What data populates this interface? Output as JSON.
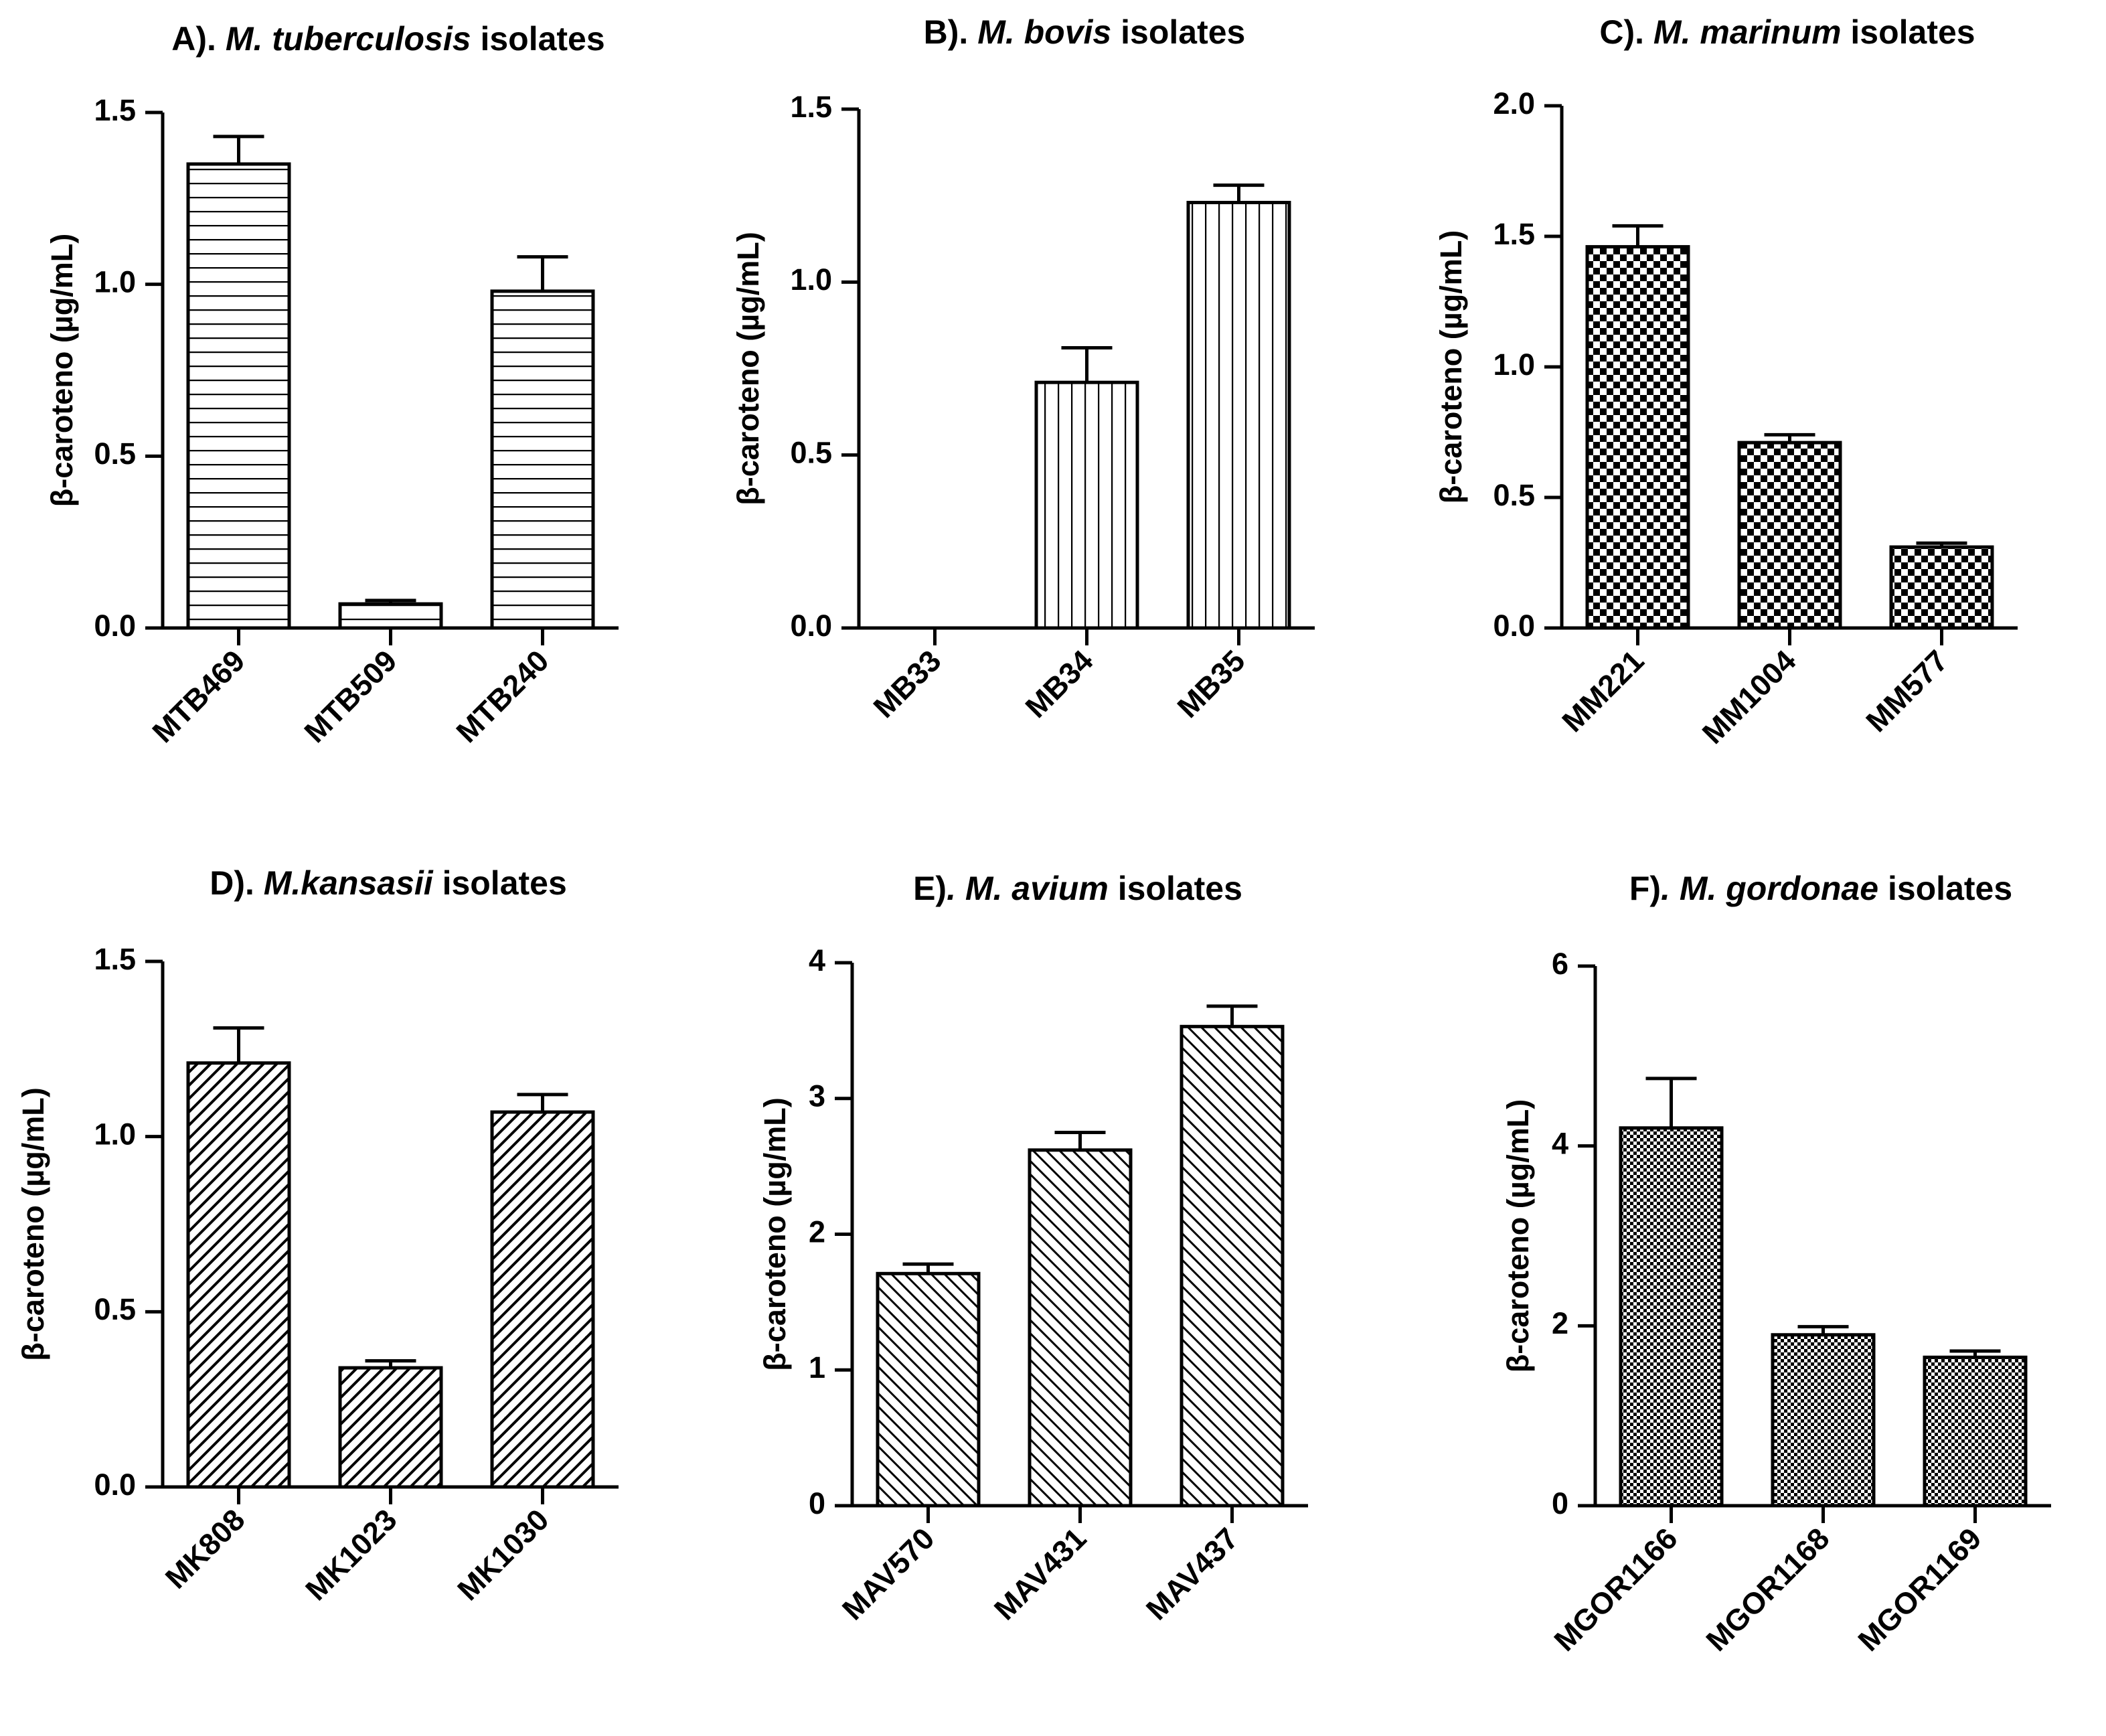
{
  "chart_data": [
    {
      "type": "bar",
      "title": {
        "prefix": "A). ",
        "italic": "M. tuberculosis",
        "suffix": " isolates"
      },
      "ylabel": "β-caroteno (µg/mL)",
      "ylim": [
        0,
        1.5
      ],
      "yticks": [
        "0.0",
        "0.5",
        "1.0",
        "1.5"
      ],
      "categories": [
        "MTB469",
        "MTB509",
        "MTB240"
      ],
      "values": [
        1.35,
        0.07,
        0.98
      ],
      "errors": [
        0.08,
        0.01,
        0.1
      ],
      "pattern": "hlines"
    },
    {
      "type": "bar",
      "title": {
        "prefix": "B). ",
        "italic": "M. bovis",
        "suffix": " isolates"
      },
      "ylabel": "β-caroteno (µg/mL)",
      "ylim": [
        0,
        1.5
      ],
      "yticks": [
        "0.0",
        "0.5",
        "1.0",
        "1.5"
      ],
      "categories": [
        "MB33",
        "MB34",
        "MB35"
      ],
      "values": [
        0,
        0.71,
        1.23
      ],
      "errors": [
        0,
        0.1,
        0.05
      ],
      "pattern": "vlines"
    },
    {
      "type": "bar",
      "title": {
        "prefix": "C). ",
        "italic": "M. marinum",
        "suffix": " isolates"
      },
      "ylabel": "β-caroteno (µg/mL)",
      "ylim": [
        0,
        2.0
      ],
      "yticks": [
        "0.0",
        "0.5",
        "1.0",
        "1.5",
        "2.0"
      ],
      "categories": [
        "MM221",
        "MM1004",
        "MM577"
      ],
      "values": [
        1.46,
        0.71,
        0.31
      ],
      "errors": [
        0.08,
        0.03,
        0.015
      ],
      "pattern": "checker"
    },
    {
      "type": "bar",
      "title": {
        "prefix": "D). ",
        "italic": "M.kansasii",
        "suffix": " isolates"
      },
      "ylabel": "β-caroteno (µg/mL)",
      "ylim": [
        0,
        1.5
      ],
      "yticks": [
        "0.0",
        "0.5",
        "1.0",
        "1.5"
      ],
      "categories": [
        "MK808",
        "MK1023",
        "MK1030"
      ],
      "values": [
        1.21,
        0.34,
        1.07
      ],
      "errors": [
        0.1,
        0.02,
        0.05
      ],
      "pattern": "diag-up"
    },
    {
      "type": "bar",
      "title": {
        "prefix": "E)",
        "italic": ". M. avium",
        "suffix": " isolates"
      },
      "ylabel": "β-caroteno (µg/mL)",
      "ylim": [
        0,
        4
      ],
      "yticks": [
        "0",
        "1",
        "2",
        "3",
        "4"
      ],
      "categories": [
        "MAV570",
        "MAV431",
        "MAV437"
      ],
      "values": [
        1.71,
        2.62,
        3.53
      ],
      "errors": [
        0.07,
        0.13,
        0.15
      ],
      "pattern": "diag-down"
    },
    {
      "type": "bar",
      "title": {
        "prefix": "F)",
        "italic": ". M. gordonae",
        "suffix": " isolates"
      },
      "ylabel": "β-caroteno (µg/mL)",
      "ylim": [
        0,
        6
      ],
      "yticks": [
        "0",
        "2",
        "4",
        "6"
      ],
      "categories": [
        "MGOR1166",
        "MGOR1168",
        "MGOR1169"
      ],
      "values": [
        4.2,
        1.9,
        1.65
      ],
      "errors": [
        0.55,
        0.09,
        0.07
      ],
      "pattern": "finecheck"
    }
  ]
}
